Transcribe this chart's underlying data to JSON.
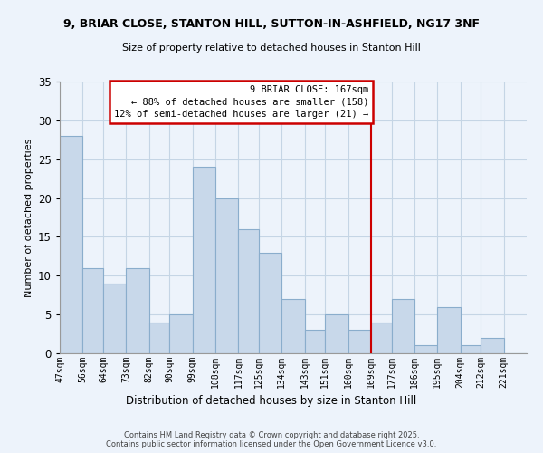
{
  "title_line1": "9, BRIAR CLOSE, STANTON HILL, SUTTON-IN-ASHFIELD, NG17 3NF",
  "title_line2": "Size of property relative to detached houses in Stanton Hill",
  "xlabel": "Distribution of detached houses by size in Stanton Hill",
  "ylabel": "Number of detached properties",
  "bin_labels": [
    "47sqm",
    "56sqm",
    "64sqm",
    "73sqm",
    "82sqm",
    "90sqm",
    "99sqm",
    "108sqm",
    "117sqm",
    "125sqm",
    "134sqm",
    "143sqm",
    "151sqm",
    "160sqm",
    "169sqm",
    "177sqm",
    "186sqm",
    "195sqm",
    "204sqm",
    "212sqm",
    "221sqm"
  ],
  "bin_edges": [
    47,
    56,
    64,
    73,
    82,
    90,
    99,
    108,
    117,
    125,
    134,
    143,
    151,
    160,
    169,
    177,
    186,
    195,
    204,
    212,
    221
  ],
  "bar_heights": [
    28,
    11,
    9,
    11,
    4,
    5,
    24,
    20,
    16,
    13,
    7,
    3,
    5,
    3,
    4,
    7,
    1,
    6,
    1,
    2,
    0
  ],
  "bar_color": "#c8d8ea",
  "bar_edge_color": "#8aadcc",
  "grid_color": "#c5d5e5",
  "background_color": "#edf3fb",
  "ylim": [
    0,
    35
  ],
  "yticks": [
    0,
    5,
    10,
    15,
    20,
    25,
    30,
    35
  ],
  "property_line_x": 169,
  "property_line_color": "#cc0000",
  "annotation_line1": "9 BRIAR CLOSE: 167sqm",
  "annotation_line2": "← 88% of detached houses are smaller (158)",
  "annotation_line3": "12% of semi-detached houses are larger (21) →",
  "annotation_box_color": "#ffffff",
  "annotation_border_color": "#cc0000",
  "footer_line1": "Contains HM Land Registry data © Crown copyright and database right 2025.",
  "footer_line2": "Contains public sector information licensed under the Open Government Licence v3.0."
}
